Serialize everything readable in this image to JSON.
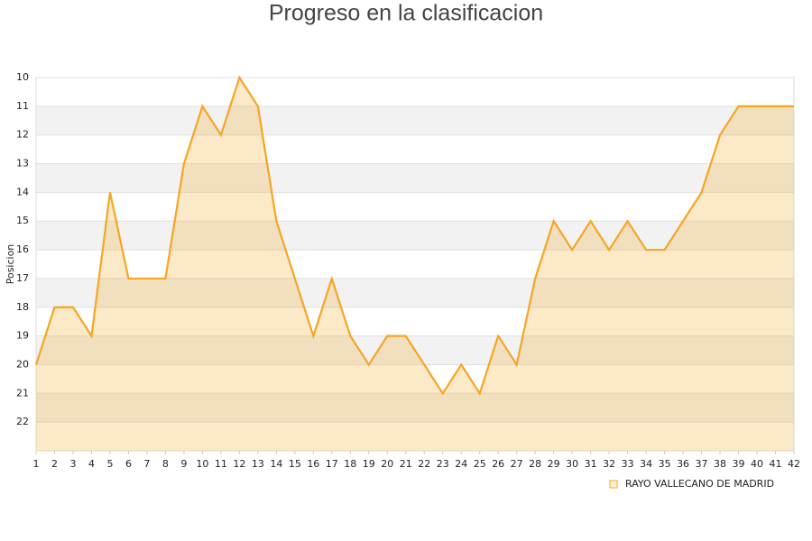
{
  "chart_data": {
    "type": "area",
    "title": "Progreso en la clasificacion",
    "y_label": "Posicion",
    "x": [
      1,
      2,
      3,
      4,
      5,
      6,
      7,
      8,
      9,
      10,
      11,
      12,
      13,
      14,
      15,
      16,
      17,
      18,
      19,
      20,
      21,
      22,
      23,
      24,
      25,
      26,
      27,
      28,
      29,
      30,
      31,
      32,
      33,
      34,
      35,
      36,
      37,
      38,
      39,
      40,
      41,
      42
    ],
    "xlim": [
      1,
      42
    ],
    "xticks": [
      1,
      2,
      3,
      4,
      5,
      6,
      7,
      8,
      9,
      10,
      11,
      12,
      13,
      14,
      15,
      16,
      17,
      18,
      19,
      20,
      21,
      22,
      23,
      24,
      25,
      26,
      27,
      28,
      29,
      30,
      31,
      32,
      33,
      34,
      35,
      36,
      37,
      38,
      39,
      40,
      41,
      42
    ],
    "ylim": [
      10,
      23
    ],
    "y_inverted": true,
    "yticks": [
      10,
      11,
      12,
      13,
      14,
      15,
      16,
      17,
      18,
      19,
      20,
      21,
      22
    ],
    "grid": true,
    "legend": "bottom-right",
    "series": [
      {
        "name": "RAYO VALLECANO DE MADRID",
        "color": "#f5a623",
        "values": [
          20,
          18,
          18,
          19,
          14,
          17,
          17,
          17,
          13,
          11,
          12,
          10,
          11,
          15,
          17,
          19,
          17,
          19,
          20,
          19,
          19,
          20,
          21,
          20,
          21,
          19,
          20,
          17,
          15,
          16,
          15,
          16,
          15,
          16,
          16,
          15,
          14,
          12,
          11,
          11,
          11,
          11
        ]
      }
    ]
  }
}
